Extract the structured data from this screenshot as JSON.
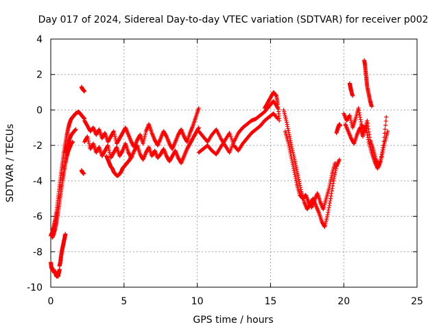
{
  "chart_data": {
    "type": "scatter",
    "title": "Day 017 of 2024, Sidereal Day-to-day VTEC variation (SDTVAR) for receiver p002",
    "xlabel": "GPS time / hours",
    "ylabel": "SDTVAR / TECUs",
    "xlim": [
      0,
      25
    ],
    "ylim": [
      -10,
      4
    ],
    "xticks": [
      0,
      5,
      10,
      15,
      20,
      25
    ],
    "yticks": [
      -10,
      -8,
      -6,
      -4,
      -2,
      0,
      2,
      4
    ],
    "xtick_labels": [
      "0",
      "5",
      "10",
      "15",
      "20",
      "25"
    ],
    "ytick_labels": [
      "-10",
      "-8",
      "-6",
      "-4",
      "-2",
      "0",
      "2",
      "4"
    ],
    "grid": true,
    "marker": "plus",
    "series": [
      {
        "name": "SDTVAR",
        "color": "#ff0000",
        "segments": [
          {
            "x": [
              0.0,
              0.05,
              0.1,
              0.15,
              0.2,
              0.25,
              0.3,
              0.35,
              0.4,
              0.45,
              0.5,
              0.55,
              0.6
            ],
            "y": [
              -8.6,
              -8.9,
              -9.0,
              -9.1,
              -9.0,
              -9.2,
              -9.1,
              -9.3,
              -9.4,
              -9.3,
              -9.4,
              -9.2,
              -9.0
            ]
          },
          {
            "x": [
              0.6,
              0.65,
              0.7,
              0.75,
              0.8,
              0.85,
              0.9,
              0.95,
              1.0
            ],
            "y": [
              -8.8,
              -8.6,
              -8.3,
              -8.0,
              -7.8,
              -7.6,
              -7.4,
              -7.2,
              -7.0
            ]
          },
          {
            "x": [
              0.0,
              0.1,
              0.2,
              0.3,
              0.4,
              0.5,
              0.6,
              0.7,
              0.8,
              0.9,
              1.0,
              1.1,
              1.2,
              1.3,
              1.4,
              1.5,
              1.6,
              1.7,
              1.8,
              1.9,
              2.0,
              2.1,
              2.2,
              2.3
            ],
            "y": [
              -7.1,
              -6.9,
              -6.6,
              -6.2,
              -5.7,
              -5.0,
              -4.3,
              -3.6,
              -3.0,
              -2.4,
              -1.9,
              -1.4,
              -1.0,
              -0.7,
              -0.5,
              -0.4,
              -0.3,
              -0.2,
              -0.15,
              -0.1,
              -0.2,
              -0.3,
              -0.4,
              -0.5
            ]
          },
          {
            "x": [
              0.1,
              0.2,
              0.3,
              0.4,
              0.5,
              0.6,
              0.7,
              0.8,
              0.9,
              1.0,
              1.1,
              1.2,
              1.3,
              1.4,
              1.5
            ],
            "y": [
              -7.2,
              -7.0,
              -6.7,
              -6.3,
              -5.8,
              -5.2,
              -4.6,
              -4.0,
              -3.5,
              -3.0,
              -2.6,
              -2.3,
              -2.1,
              -1.9,
              -1.8
            ]
          },
          {
            "x": [
              1.0,
              1.1,
              1.2,
              1.3,
              1.4,
              1.5,
              1.6,
              1.7
            ],
            "y": [
              -2.4,
              -2.2,
              -1.9,
              -1.6,
              -1.4,
              -1.3,
              -1.2,
              -1.1
            ]
          },
          {
            "x": [
              2.1,
              2.15,
              2.2,
              2.25,
              2.3
            ],
            "y": [
              1.3,
              1.2,
              1.15,
              1.1,
              1.05
            ]
          },
          {
            "x": [
              2.1,
              2.15,
              2.2,
              2.25
            ],
            "y": [
              -3.4,
              -3.5,
              -3.55,
              -3.6
            ]
          },
          {
            "x": [
              2.3,
              2.5,
              2.7,
              2.9,
              3.1,
              3.3,
              3.5,
              3.7,
              3.9,
              4.1,
              4.3,
              4.5,
              4.7,
              4.9,
              5.1,
              5.3,
              5.5,
              5.7,
              5.9,
              6.1,
              6.3,
              6.5,
              6.7,
              6.9,
              7.1,
              7.3,
              7.5,
              7.7,
              7.9,
              8.1,
              8.3,
              8.5,
              8.7,
              8.9,
              9.1,
              9.3,
              9.5,
              9.7,
              9.9,
              10.1
            ],
            "y": [
              -0.6,
              -0.9,
              -1.2,
              -1.0,
              -1.4,
              -1.1,
              -1.6,
              -1.3,
              -1.8,
              -1.5,
              -1.2,
              -1.9,
              -1.6,
              -1.3,
              -1.0,
              -1.4,
              -1.8,
              -2.1,
              -1.7,
              -1.4,
              -1.9,
              -1.2,
              -0.8,
              -1.3,
              -1.7,
              -2.0,
              -1.6,
              -1.2,
              -1.5,
              -1.9,
              -2.2,
              -1.8,
              -1.4,
              -1.1,
              -1.5,
              -1.8,
              -1.3,
              -0.9,
              -0.4,
              0.1
            ]
          },
          {
            "x": [
              2.3,
              2.5,
              2.7,
              2.9,
              3.1,
              3.3,
              3.5,
              3.7,
              3.9,
              4.1,
              4.3,
              4.5,
              4.7,
              4.9,
              5.1,
              5.3,
              5.5,
              5.7,
              5.9,
              6.1,
              6.3,
              6.5,
              6.7,
              6.9,
              7.1,
              7.3,
              7.5,
              7.7,
              7.9,
              8.1,
              8.3,
              8.5,
              8.7,
              8.9,
              9.1,
              9.3,
              9.5,
              9.7,
              9.9,
              10.1
            ],
            "y": [
              -1.8,
              -1.5,
              -2.2,
              -1.9,
              -2.4,
              -2.1,
              -2.6,
              -2.3,
              -2.0,
              -2.7,
              -2.4,
              -2.1,
              -2.6,
              -2.3,
              -1.9,
              -2.4,
              -2.7,
              -2.3,
              -2.0,
              -2.5,
              -2.8,
              -2.4,
              -2.1,
              -2.6,
              -2.3,
              -2.7,
              -2.5,
              -2.2,
              -2.6,
              -2.9,
              -2.6,
              -2.3,
              -2.7,
              -3.0,
              -2.6,
              -2.2,
              -1.9,
              -1.6,
              -1.3,
              -1.0
            ]
          },
          {
            "x": [
              3.8,
              3.9,
              4.0,
              4.1,
              4.2,
              4.3,
              4.4,
              4.5,
              4.6,
              4.7,
              4.8,
              4.9,
              5.0,
              5.1,
              5.2,
              5.3,
              5.4,
              5.5
            ],
            "y": [
              -2.6,
              -2.8,
              -3.0,
              -3.2,
              -3.3,
              -3.5,
              -3.6,
              -3.7,
              -3.7,
              -3.6,
              -3.5,
              -3.3,
              -3.2,
              -3.1,
              -3.0,
              -2.9,
              -2.8,
              -2.6
            ]
          },
          {
            "x": [
              10.1,
              10.4,
              10.7,
              11.0,
              11.3,
              11.6,
              11.9,
              12.2,
              12.5,
              12.8,
              13.1,
              13.4,
              13.7,
              14.0,
              14.3,
              14.6,
              14.9,
              15.2,
              15.5
            ],
            "y": [
              -1.2,
              -1.5,
              -1.8,
              -1.4,
              -1.1,
              -1.6,
              -2.0,
              -2.4,
              -1.8,
              -1.3,
              -1.0,
              -0.8,
              -0.6,
              -0.5,
              -0.3,
              -0.1,
              0.2,
              0.5,
              0.1
            ]
          },
          {
            "x": [
              10.1,
              10.4,
              10.7,
              11.0,
              11.3,
              11.6,
              11.9,
              12.2,
              12.5,
              12.8,
              13.1,
              13.4,
              13.7,
              14.0,
              14.3,
              14.6,
              14.9,
              15.2,
              15.5
            ],
            "y": [
              -2.4,
              -2.2,
              -2.0,
              -2.3,
              -2.5,
              -2.1,
              -1.7,
              -1.3,
              -2.0,
              -2.3,
              -1.9,
              -1.6,
              -1.3,
              -1.1,
              -0.9,
              -0.6,
              -0.4,
              -0.2,
              -0.5
            ]
          },
          {
            "x": [
              14.6,
              14.8,
              15.0,
              15.2,
              15.4,
              15.5,
              15.6
            ],
            "y": [
              0.1,
              0.4,
              0.7,
              1.0,
              0.8,
              0.3,
              -0.6
            ]
          },
          {
            "x": [
              15.9,
              16.1,
              16.3,
              16.5,
              16.7,
              16.9,
              17.1,
              17.3,
              17.5,
              17.7,
              17.9,
              18.1,
              18.3,
              18.5,
              18.7,
              18.9,
              19.1,
              19.3,
              19.5,
              19.7
            ],
            "y": [
              0.0,
              -0.7,
              -1.5,
              -2.3,
              -3.0,
              -3.8,
              -4.6,
              -5.2,
              -5.6,
              -5.3,
              -5.0,
              -5.4,
              -5.8,
              -6.3,
              -6.6,
              -5.9,
              -5.0,
              -4.0,
              -3.2,
              -2.8
            ]
          },
          {
            "x": [
              16.0,
              16.2,
              16.4,
              16.6,
              16.8,
              17.0,
              17.2,
              17.4,
              17.6,
              17.8,
              18.0,
              18.2,
              18.4,
              18.6,
              18.8,
              19.0,
              19.2,
              19.4
            ],
            "y": [
              -1.2,
              -1.8,
              -2.6,
              -3.4,
              -4.2,
              -4.8,
              -5.0,
              -4.8,
              -5.2,
              -5.5,
              -5.1,
              -4.7,
              -5.2,
              -5.6,
              -5.0,
              -4.4,
              -3.6,
              -3.0
            ]
          },
          {
            "x": [
              19.5,
              19.6,
              19.7,
              19.75
            ],
            "y": [
              -1.3,
              -1.0,
              -0.8,
              -0.9
            ]
          },
          {
            "x": [
              20.0,
              20.2,
              20.4,
              20.6,
              20.8,
              21.0,
              21.2,
              21.4,
              21.6,
              21.8,
              22.0,
              22.2,
              22.4,
              22.6,
              22.8,
              23.0
            ],
            "y": [
              -0.2,
              -0.6,
              -0.3,
              -1.0,
              -0.5,
              0.1,
              -0.8,
              -1.2,
              -0.6,
              -1.7,
              -2.2,
              -2.8,
              -3.2,
              -2.6,
              -1.8,
              -1.2
            ]
          },
          {
            "x": [
              20.1,
              20.3,
              20.5,
              20.7,
              20.9,
              21.1,
              21.3,
              21.5,
              21.7,
              21.9,
              22.1,
              22.3,
              22.5,
              22.7,
              22.9
            ],
            "y": [
              -0.8,
              -1.2,
              -1.6,
              -1.9,
              -1.4,
              -1.0,
              -1.5,
              -0.9,
              -1.8,
              -2.4,
              -2.9,
              -3.3,
              -2.9,
              -2.0,
              -0.4
            ]
          },
          {
            "x": [
              20.4,
              20.45,
              20.5,
              20.6
            ],
            "y": [
              1.5,
              1.3,
              1.1,
              0.8
            ]
          },
          {
            "x": [
              21.4,
              21.45,
              21.5,
              21.55,
              21.6,
              21.7,
              21.8,
              21.9
            ],
            "y": [
              2.8,
              2.5,
              2.1,
              1.7,
              1.3,
              0.9,
              0.5,
              0.2
            ]
          }
        ]
      }
    ]
  }
}
